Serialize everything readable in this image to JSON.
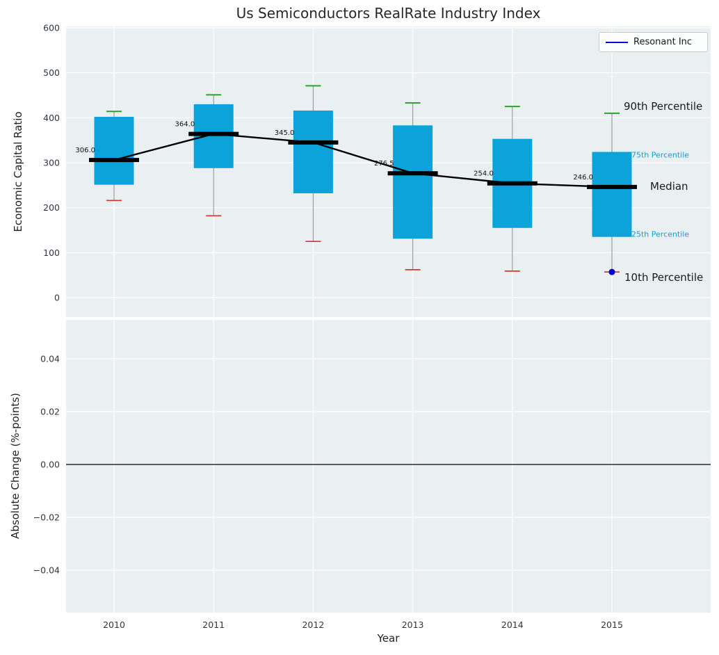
{
  "title": "Us Semiconductors RealRate Industry Index",
  "xlabel": "Year",
  "legend": {
    "label": "Resonant Inc",
    "line_color": "#0000cd"
  },
  "top_panel": {
    "ylabel": "Economic Capital Ratio",
    "yticks": [
      {
        "label": "0",
        "value": 0
      },
      {
        "label": "100",
        "value": 100
      },
      {
        "label": "200",
        "value": 200
      },
      {
        "label": "300",
        "value": 300
      },
      {
        "label": "400",
        "value": 400
      },
      {
        "label": "500",
        "value": 500
      },
      {
        "label": "600",
        "value": 600
      }
    ]
  },
  "bottom_panel": {
    "ylabel": "Absolute Change (%-points)",
    "yticks": [
      {
        "label": "0.04",
        "value": 0.04
      },
      {
        "label": "0.02",
        "value": 0.02
      },
      {
        "label": "0.00",
        "value": 0.0
      },
      {
        "label": "−0.02",
        "value": -0.02
      },
      {
        "label": "−0.04",
        "value": -0.04
      }
    ],
    "zero_line_value": 0.0
  },
  "chart_data": {
    "type": "boxplot+line",
    "title": "Us Semiconductors RealRate Industry Index",
    "x": [
      2010,
      2011,
      2012,
      2013,
      2014,
      2015
    ],
    "x_tick_labels": [
      "2010",
      "2011",
      "2012",
      "2013",
      "2014",
      "2015"
    ],
    "top_axis": {
      "ylabel": "Economic Capital Ratio",
      "ylim": [
        -43,
        603
      ],
      "grid": true
    },
    "bottom_axis": {
      "ylabel": "Absolute Change (%-points)",
      "ylim": [
        -0.056,
        0.055
      ],
      "grid": true
    },
    "series": [
      {
        "name": "median",
        "values": [
          306.0,
          364.0,
          345.0,
          276.5,
          254.0,
          246.0
        ]
      },
      {
        "name": "90th_percentile",
        "values": [
          414,
          451,
          471,
          433,
          425,
          410
        ]
      },
      {
        "name": "75th_percentile",
        "values": [
          402,
          430,
          416,
          383,
          353,
          324
        ]
      },
      {
        "name": "25th_percentile",
        "values": [
          251,
          288,
          232,
          131,
          155,
          135
        ]
      },
      {
        "name": "10th_percentile",
        "values": [
          216,
          182,
          125,
          62,
          59,
          57
        ]
      }
    ],
    "median_labels": [
      "306.0",
      "364.0",
      "345.0",
      "276.5",
      "254.0",
      "246.0"
    ],
    "resonant_point": {
      "x": 2015,
      "y": 57
    },
    "legend_entries": [
      "Resonant Inc"
    ]
  },
  "side_annotations": [
    {
      "label": "90th Percentile",
      "anchor_value": 410,
      "size": "large",
      "color": "#1a1a1a"
    },
    {
      "label": "75th Percentile",
      "anchor_value": 324,
      "size": "small",
      "color": "#0f9fd4"
    },
    {
      "label": "Median",
      "anchor_value": 246,
      "size": "large",
      "color": "#1a1a1a"
    },
    {
      "label": "25th Percentile",
      "anchor_value": 135,
      "size": "small",
      "color": "#0f9fd4"
    },
    {
      "label": "10th Percentile",
      "anchor_value": 57,
      "size": "large",
      "color": "#1a1a1a"
    }
  ],
  "colors": {
    "box_fill": "#0ba3d9",
    "whisker": "#949494",
    "cap_top_green": "#2da22d",
    "cap_bottom_red": "#e03131",
    "median_line": "#000000",
    "trend_line": "#000000",
    "resonant_blue": "#0000cd",
    "panel_background": "#eaeff1",
    "grid": "#ffffff",
    "tick_label": "#2e3540",
    "median_label_text": "#111111",
    "zero_line": "#000000"
  }
}
